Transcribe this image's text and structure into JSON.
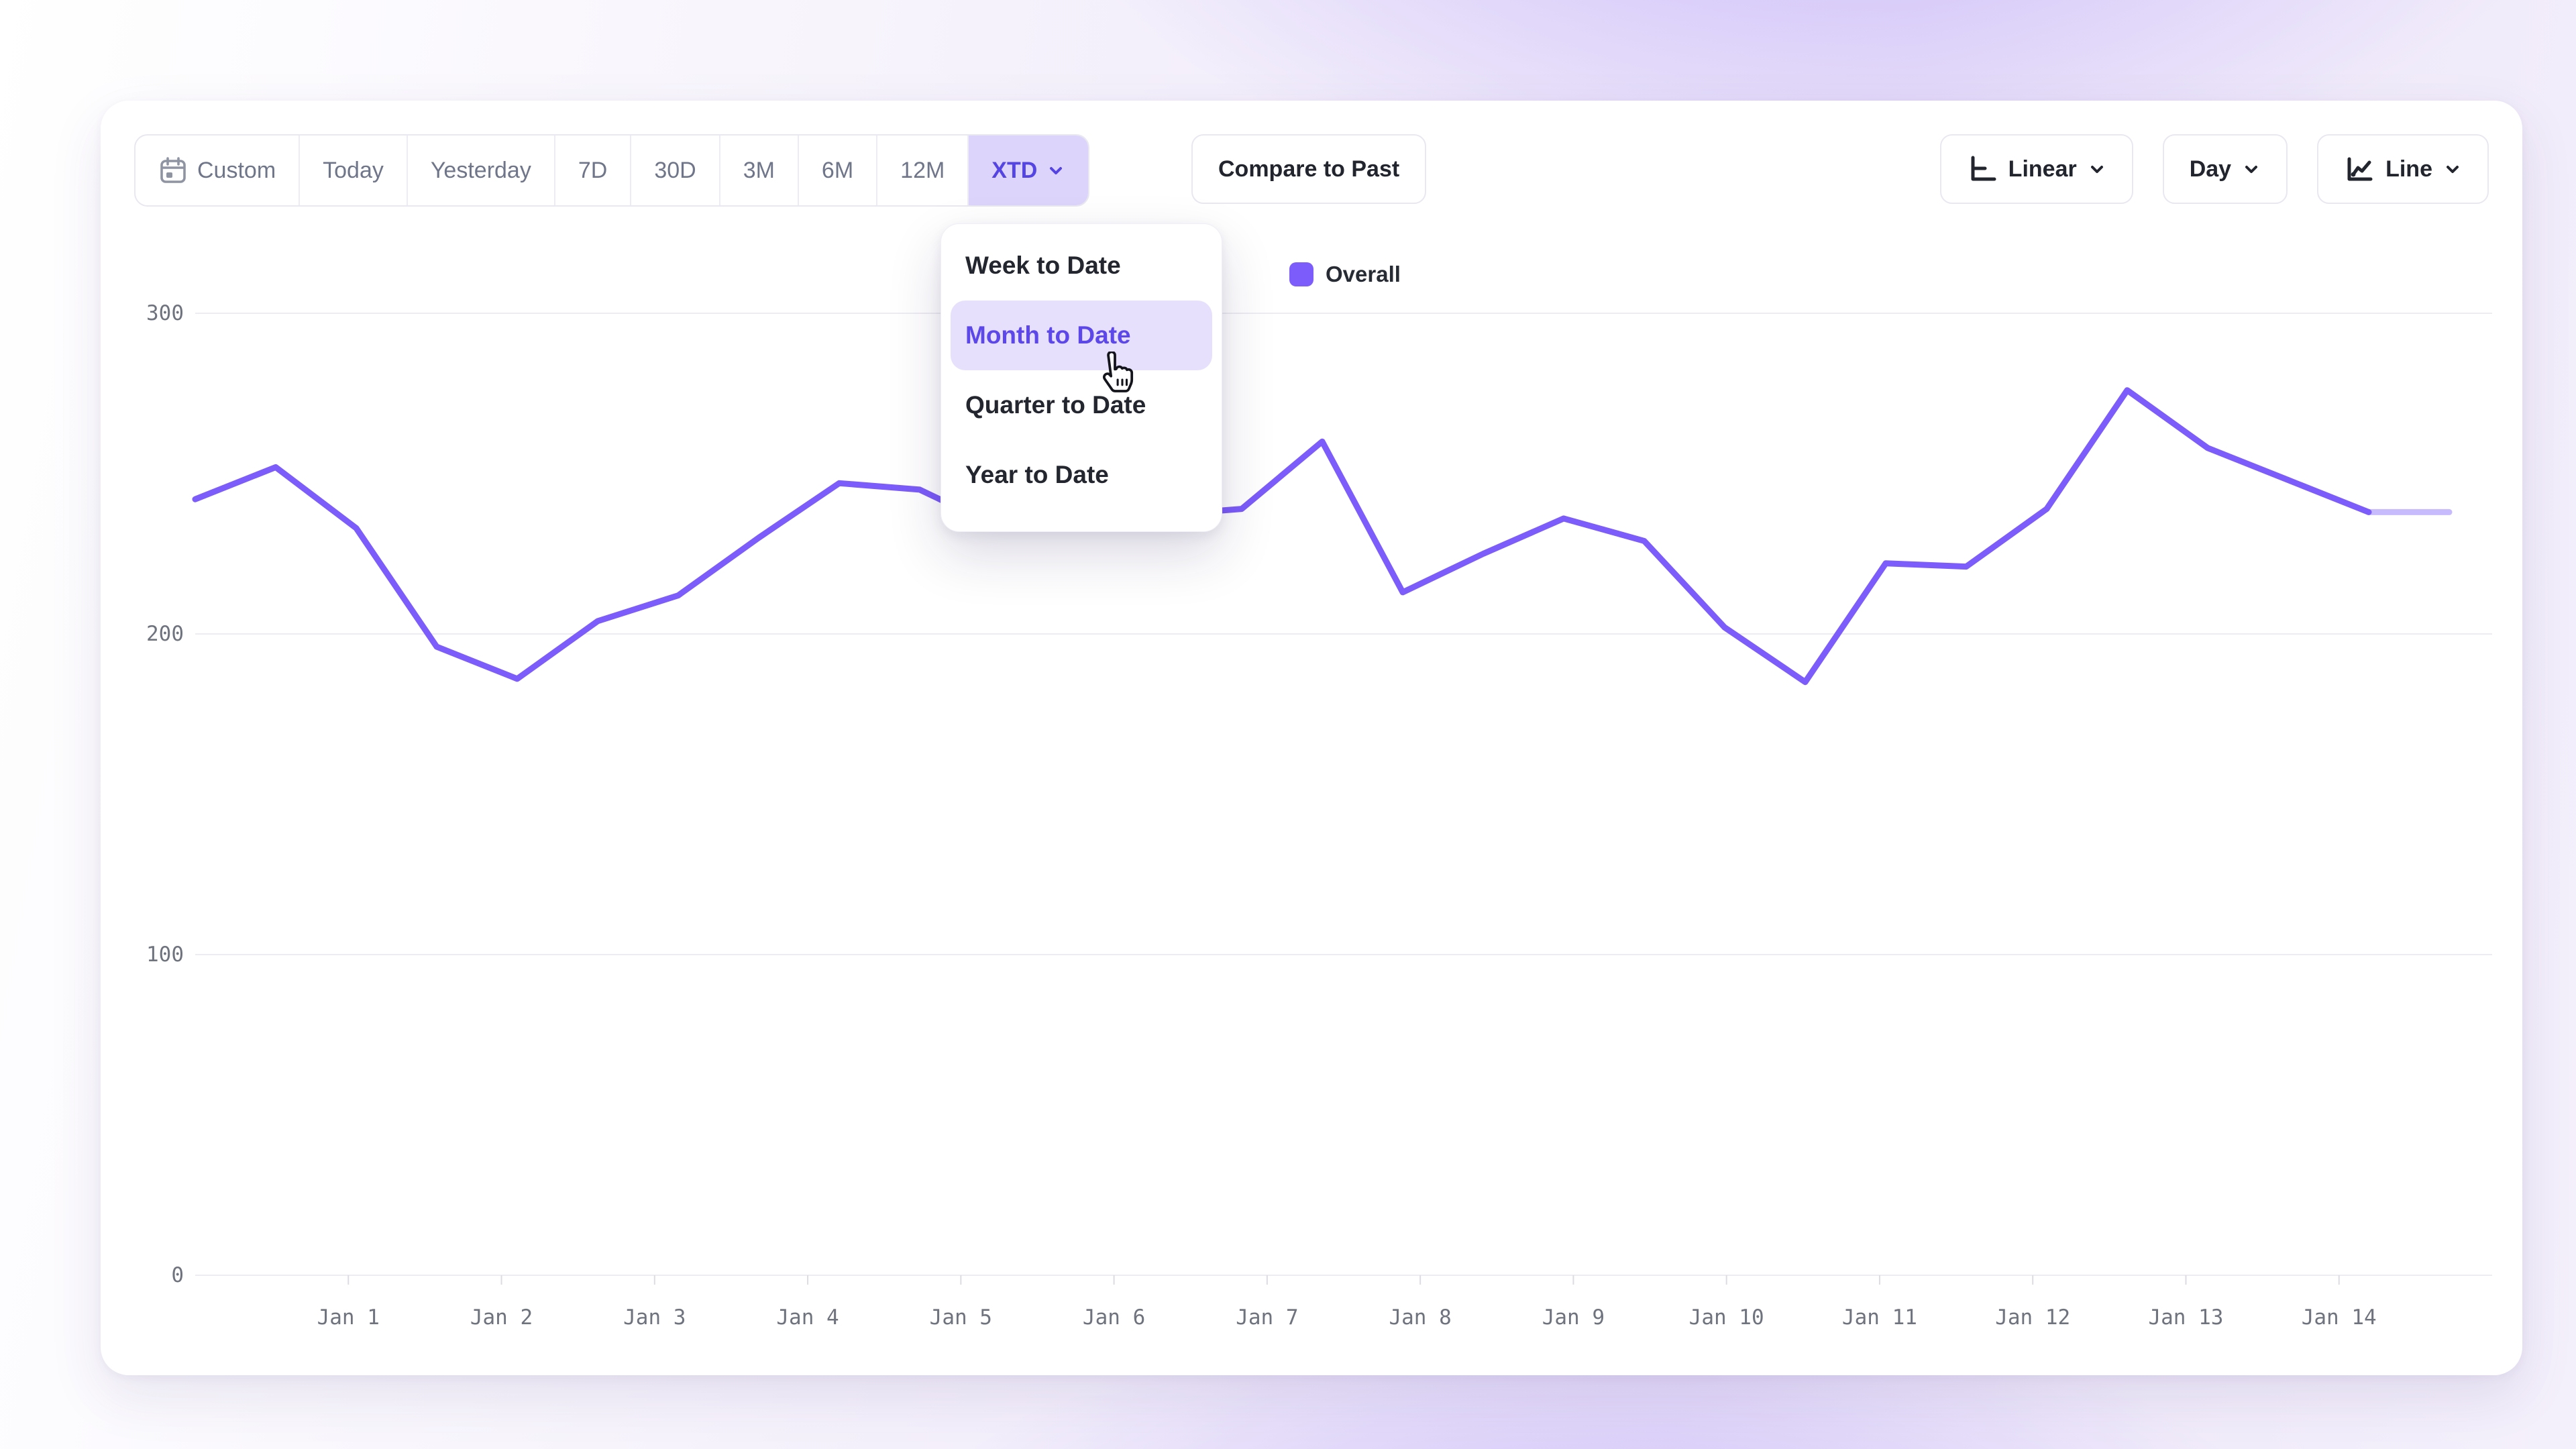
{
  "toolbar": {
    "ranges": [
      {
        "label": "Custom",
        "selected": false
      },
      {
        "label": "Today",
        "selected": false
      },
      {
        "label": "Yesterday",
        "selected": false
      },
      {
        "label": "7D",
        "selected": false
      },
      {
        "label": "30D",
        "selected": false
      },
      {
        "label": "3M",
        "selected": false
      },
      {
        "label": "6M",
        "selected": false
      },
      {
        "label": "12M",
        "selected": false
      },
      {
        "label": "XTD",
        "selected": true
      }
    ],
    "compare_label": "Compare to Past",
    "scale_button_label": "Linear",
    "interval_button_label": "Day",
    "chart_type_button_label": "Line"
  },
  "dropdown": {
    "items": [
      {
        "label": "Week to Date",
        "selected": false
      },
      {
        "label": "Month to Date",
        "selected": true
      },
      {
        "label": "Quarter to Date",
        "selected": false
      },
      {
        "label": "Year to Date",
        "selected": false
      }
    ]
  },
  "legend": {
    "label": "Overall",
    "color": "#7c5cfa"
  },
  "colors": {
    "accent": "#7c5cfa",
    "selected_pill_bg": "#dcd4fa",
    "selected_pill_text": "#5544e4",
    "menu_active_bg": "#e7e0fc",
    "menu_active_text": "#5c47ea",
    "gridline": "#ededf1",
    "axis_text": "#6f737e"
  },
  "chart_data": {
    "type": "line",
    "title": "",
    "xlabel": "",
    "ylabel": "",
    "x_tick_labels": [
      "Jan 1",
      "Jan 2",
      "Jan 3",
      "Jan 4",
      "Jan 5",
      "Jan 6",
      "Jan 7",
      "Jan 8",
      "Jan 9",
      "Jan 10",
      "Jan 11",
      "Jan 12",
      "Jan 13",
      "Jan 14"
    ],
    "y_ticks": [
      0,
      100,
      200,
      300
    ],
    "ylim": [
      0,
      300
    ],
    "grid": "horizontal",
    "legend_position": "top-center",
    "series": [
      {
        "name": "Overall",
        "color": "#7c5cfa",
        "values": [
          242,
          252,
          233,
          196,
          186,
          204,
          212,
          230,
          247,
          245,
          233,
          235,
          237,
          239,
          260,
          213,
          225,
          236,
          229,
          202,
          185,
          222,
          221,
          239,
          276,
          258,
          248,
          238,
          238
        ],
        "last_segment_faded": true
      }
    ]
  }
}
